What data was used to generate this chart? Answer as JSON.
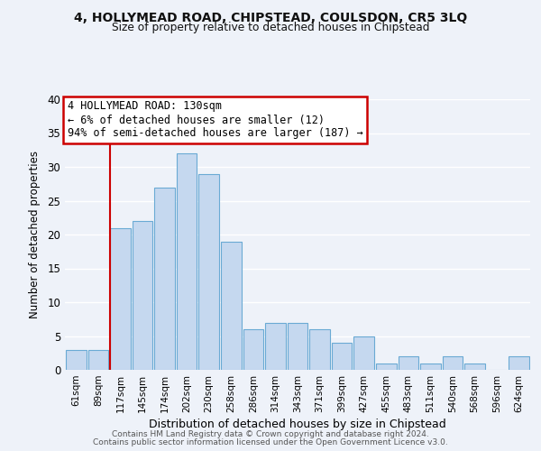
{
  "title_line1": "4, HOLLYMEAD ROAD, CHIPSTEAD, COULSDON, CR5 3LQ",
  "title_line2": "Size of property relative to detached houses in Chipstead",
  "xlabel": "Distribution of detached houses by size in Chipstead",
  "ylabel": "Number of detached properties",
  "bar_color": "#c5d8ef",
  "bar_edge_color": "#6aaad4",
  "categories": [
    "61sqm",
    "89sqm",
    "117sqm",
    "145sqm",
    "174sqm",
    "202sqm",
    "230sqm",
    "258sqm",
    "286sqm",
    "314sqm",
    "343sqm",
    "371sqm",
    "399sqm",
    "427sqm",
    "455sqm",
    "483sqm",
    "511sqm",
    "540sqm",
    "568sqm",
    "596sqm",
    "624sqm"
  ],
  "values": [
    3,
    3,
    21,
    22,
    27,
    32,
    29,
    19,
    6,
    7,
    7,
    6,
    4,
    5,
    1,
    2,
    1,
    2,
    1,
    0,
    2
  ],
  "vline_color": "#cc0000",
  "annotation_title": "4 HOLLYMEAD ROAD: 130sqm",
  "annotation_line1": "← 6% of detached houses are smaller (12)",
  "annotation_line2": "94% of semi-detached houses are larger (187) →",
  "annotation_box_color": "#ffffff",
  "annotation_box_edge": "#cc0000",
  "ylim": [
    0,
    40
  ],
  "yticks": [
    0,
    5,
    10,
    15,
    20,
    25,
    30,
    35,
    40
  ],
  "footer1": "Contains HM Land Registry data © Crown copyright and database right 2024.",
  "footer2": "Contains public sector information licensed under the Open Government Licence v3.0.",
  "background_color": "#eef2f9",
  "grid_color": "#ffffff"
}
